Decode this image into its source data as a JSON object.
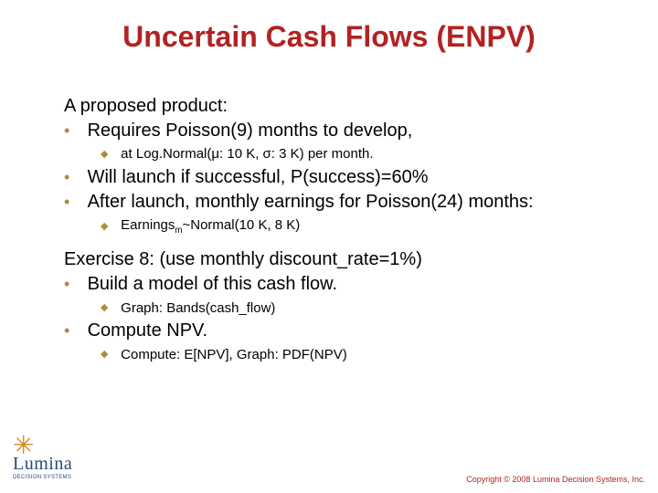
{
  "colors": {
    "title": "#b22222",
    "text": "#000000",
    "bullet": "#b28b3a",
    "logo_sun": "#d88a1a",
    "logo_text": "#2a4a7a",
    "copyright": "#b22222",
    "background": "#ffffff"
  },
  "fonts": {
    "title_family": "Trebuchet MS",
    "title_size_pt": 32,
    "body_family": "Verdana",
    "lvl0_size_pt": 20,
    "lvl1_size_pt": 20,
    "lvl2_size_pt": 15,
    "copyright_size_pt": 9
  },
  "title": "Uncertain Cash Flows (ENPV)",
  "body": {
    "intro": "A proposed product:",
    "b1": "Requires Poisson(9) months to develop,",
    "b1_sub1": "at Log.Normal(μ: 10 K, σ: 3 K) per month.",
    "b2": "Will launch if successful, P(success)=60%",
    "b3": "After launch, monthly earnings for Poisson(24) months:",
    "b3_sub1_pre": "Earnings",
    "b3_sub1_sub": "m",
    "b3_sub1_post": "~Normal(10 K, 8 K)",
    "ex_intro": "Exercise 8:   (use monthly discount_rate=1%)",
    "ex_b1": "Build a model of this cash flow.",
    "ex_b1_sub1": "Graph: Bands(cash_flow)",
    "ex_b2": "Compute NPV.",
    "ex_b2_sub1": "Compute: E[NPV], Graph: PDF(NPV)"
  },
  "bullets": {
    "lvl1": "•",
    "lvl2": "◆"
  },
  "logo": {
    "sun_glyph": "✳",
    "brand": "Lumina",
    "tagline": "DECISION SYSTEMS"
  },
  "copyright": "Copyright © 2008 Lumina Decision Systems, Inc."
}
